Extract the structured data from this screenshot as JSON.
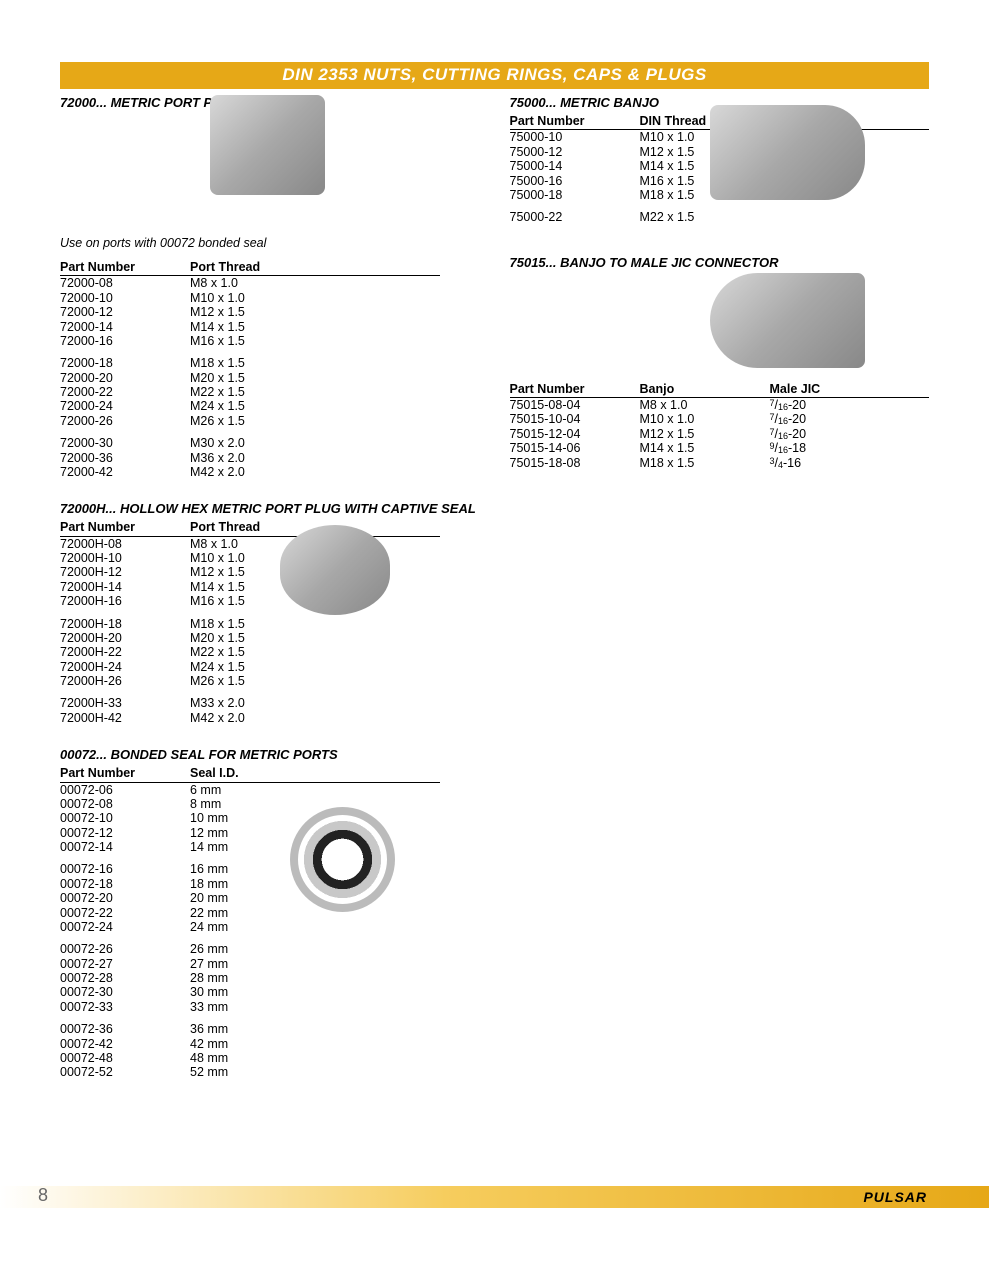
{
  "banner": "DIN 2353 NUTS, CUTTING RINGS, CAPS & PLUGS",
  "page_number": "8",
  "brand": "PULSAR",
  "colors": {
    "banner_bg": "#e6a817",
    "banner_text": "#ffffff",
    "text": "#000000",
    "rule": "#000000"
  },
  "sec1": {
    "title": "72000... METRIC PORT PLUG",
    "note": "Use on ports with 00072 bonded seal",
    "headers": [
      "Part Number",
      "Port Thread"
    ],
    "groups": [
      [
        [
          "72000-08",
          "M8 x 1.0"
        ],
        [
          "72000-10",
          "M10 x 1.0"
        ],
        [
          "72000-12",
          "M12 x 1.5"
        ],
        [
          "72000-14",
          "M14 x 1.5"
        ],
        [
          "72000-16",
          "M16 x 1.5"
        ]
      ],
      [
        [
          "72000-18",
          "M18 x 1.5"
        ],
        [
          "72000-20",
          "M20 x 1.5"
        ],
        [
          "72000-22",
          "M22 x 1.5"
        ],
        [
          "72000-24",
          "M24 x 1.5"
        ],
        [
          "72000-26",
          "M26 x 1.5"
        ]
      ],
      [
        [
          "72000-30",
          "M30 x 2.0"
        ],
        [
          "72000-36",
          "M36 x 2.0"
        ],
        [
          "72000-42",
          "M42 x 2.0"
        ]
      ]
    ]
  },
  "sec2": {
    "title": "72000H... HOLLOW HEX METRIC PORT PLUG WITH CAPTIVE SEAL",
    "headers": [
      "Part Number",
      "Port Thread"
    ],
    "groups": [
      [
        [
          "72000H-08",
          "M8 x 1.0"
        ],
        [
          "72000H-10",
          "M10 x 1.0"
        ],
        [
          "72000H-12",
          "M12 x 1.5"
        ],
        [
          "72000H-14",
          "M14 x 1.5"
        ],
        [
          "72000H-16",
          "M16 x 1.5"
        ]
      ],
      [
        [
          "72000H-18",
          "M18 x 1.5"
        ],
        [
          "72000H-20",
          "M20 x 1.5"
        ],
        [
          "72000H-22",
          "M22 x 1.5"
        ],
        [
          "72000H-24",
          "M24 x 1.5"
        ],
        [
          "72000H-26",
          "M26 x 1.5"
        ]
      ],
      [
        [
          "72000H-33",
          "M33 x 2.0"
        ],
        [
          "72000H-42",
          "M42 x 2.0"
        ]
      ]
    ]
  },
  "sec3": {
    "title": "00072... BONDED SEAL FOR METRIC PORTS",
    "headers": [
      "Part Number",
      "Seal I.D."
    ],
    "groups": [
      [
        [
          "00072-06",
          "6 mm"
        ],
        [
          "00072-08",
          "8 mm"
        ],
        [
          "00072-10",
          "10 mm"
        ],
        [
          "00072-12",
          "12 mm"
        ],
        [
          "00072-14",
          "14 mm"
        ]
      ],
      [
        [
          "00072-16",
          "16 mm"
        ],
        [
          "00072-18",
          "18 mm"
        ],
        [
          "00072-20",
          "20 mm"
        ],
        [
          "00072-22",
          "22 mm"
        ],
        [
          "00072-24",
          "24 mm"
        ]
      ],
      [
        [
          "00072-26",
          "26 mm"
        ],
        [
          "00072-27",
          "27 mm"
        ],
        [
          "00072-28",
          "28 mm"
        ],
        [
          "00072-30",
          "30 mm"
        ],
        [
          "00072-33",
          "33 mm"
        ]
      ],
      [
        [
          "00072-36",
          "36 mm"
        ],
        [
          "00072-42",
          "42 mm"
        ],
        [
          "00072-48",
          "48 mm"
        ],
        [
          "00072-52",
          "52 mm"
        ]
      ]
    ]
  },
  "sec4": {
    "title": "75000... METRIC BANJO",
    "headers": [
      "Part Number",
      "DIN Thread"
    ],
    "groups": [
      [
        [
          "75000-10",
          "M10 x 1.0"
        ],
        [
          "75000-12",
          "M12 x 1.5"
        ],
        [
          "75000-14",
          "M14 x 1.5"
        ],
        [
          "75000-16",
          "M16 x 1.5"
        ],
        [
          "75000-18",
          "M18 x 1.5"
        ]
      ],
      [
        [
          "75000-22",
          "M22 x 1.5"
        ]
      ]
    ]
  },
  "sec5": {
    "title": "75015... BANJO TO MALE JIC CONNECTOR",
    "headers": [
      "Part Number",
      "Banjo",
      "Male JIC"
    ],
    "rows": [
      [
        "75015-08-04",
        "M8 x 1.0",
        "7/16-20"
      ],
      [
        "75015-10-04",
        "M10 x 1.0",
        "7/16-20"
      ],
      [
        "75015-12-04",
        "M12 x 1.5",
        "7/16-20"
      ],
      [
        "75015-14-06",
        "M14 x 1.5",
        "9/16-18"
      ],
      [
        "75015-18-08",
        "M18 x 1.5",
        "3/4-16"
      ]
    ]
  }
}
